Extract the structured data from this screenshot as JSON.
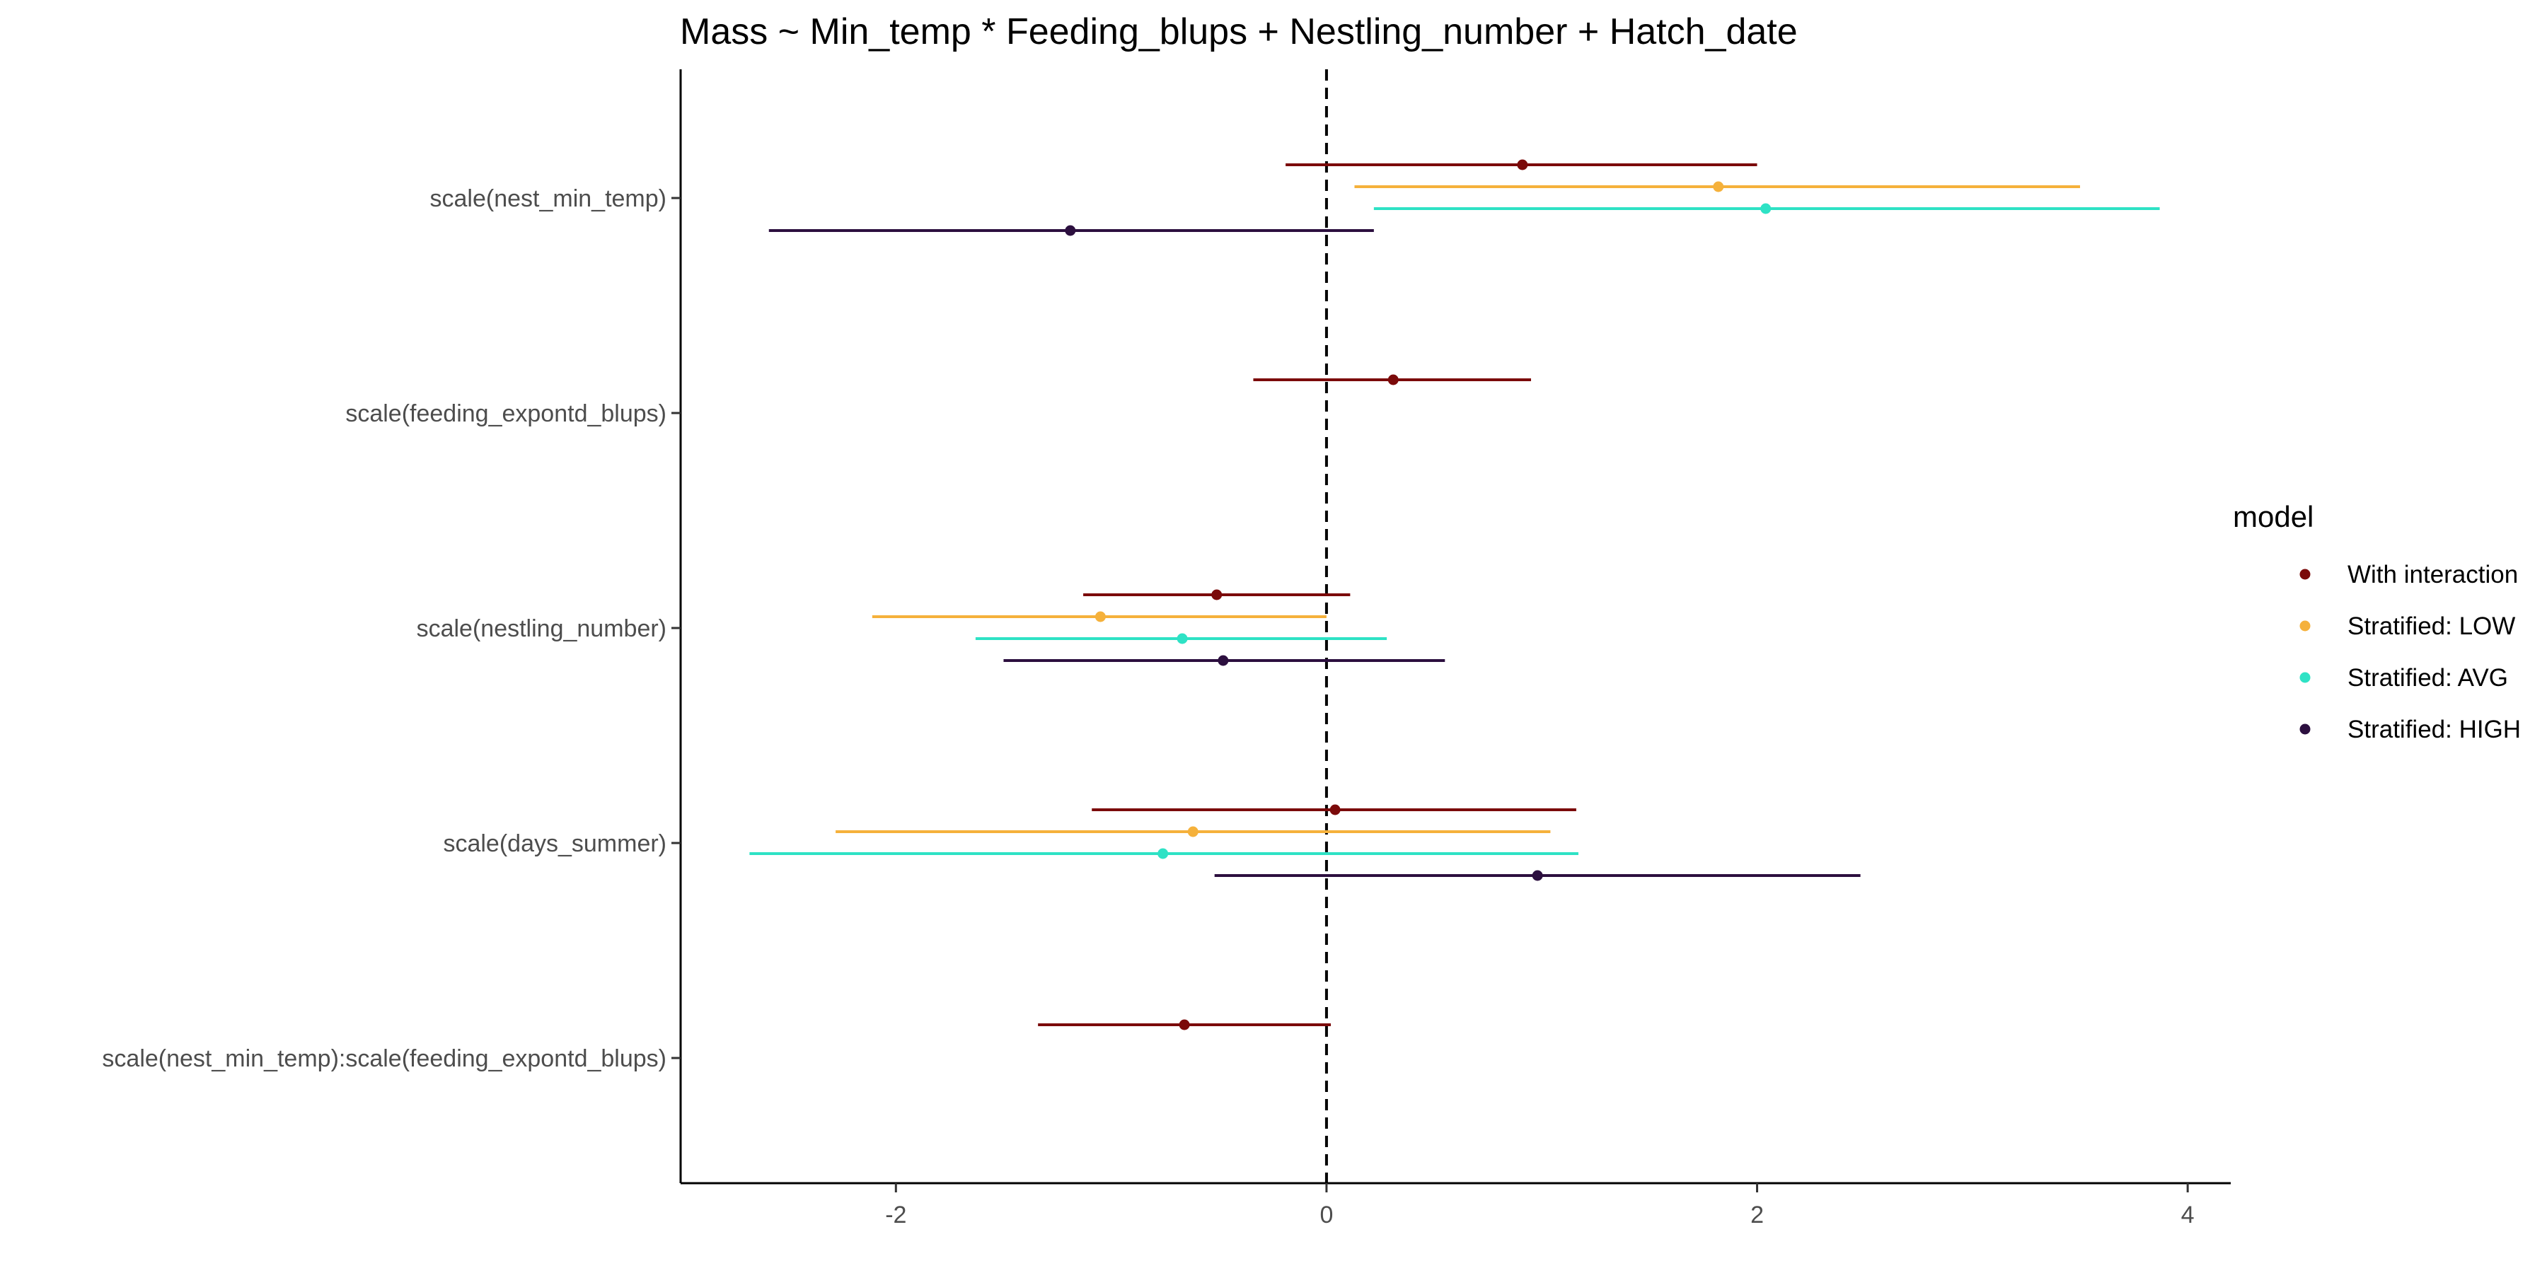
{
  "chart_data": {
    "type": "forest",
    "title": "Mass ~ Min_temp * Feeding_blups + Nestling_number + Hatch_date",
    "xlabel": "",
    "ylabel": "",
    "xlim": [
      -3.0,
      4.2
    ],
    "xticks": [
      -2,
      0,
      2,
      4
    ],
    "xtick_labels": [
      "-2",
      "0",
      "2",
      "4"
    ],
    "reference_line": {
      "x": 0,
      "style": "dashed"
    },
    "grid": false,
    "terms": [
      "scale(nest_min_temp)",
      "scale(feeding_expontd_blups)",
      "scale(nestling_number)",
      "scale(days_summer)",
      "scale(nest_min_temp):scale(feeding_expontd_blups)"
    ],
    "legend": {
      "title": "model",
      "position": "right"
    },
    "series": [
      {
        "name": "With interaction",
        "color": "#7b0a0a",
        "points": [
          {
            "term": "scale(nest_min_temp)",
            "estimate": 0.91,
            "low": -0.19,
            "high": 2.0
          },
          {
            "term": "scale(feeding_expontd_blups)",
            "estimate": 0.31,
            "low": -0.34,
            "high": 0.95
          },
          {
            "term": "scale(nestling_number)",
            "estimate": -0.51,
            "low": -1.13,
            "high": 0.11
          },
          {
            "term": "scale(days_summer)",
            "estimate": 0.04,
            "low": -1.09,
            "high": 1.16
          },
          {
            "term": "scale(nest_min_temp):scale(feeding_expontd_blups)",
            "estimate": -0.66,
            "low": -1.34,
            "high": 0.02
          }
        ]
      },
      {
        "name": "Stratified: LOW",
        "color": "#f5b13b",
        "points": [
          {
            "term": "scale(nest_min_temp)",
            "estimate": 1.82,
            "low": 0.13,
            "high": 3.5
          },
          {
            "term": "scale(nestling_number)",
            "estimate": -1.05,
            "low": -2.11,
            "high": 0.0
          },
          {
            "term": "scale(days_summer)",
            "estimate": -0.62,
            "low": -2.28,
            "high": 1.04
          }
        ]
      },
      {
        "name": "Stratified: AVG",
        "color": "#2ee2c5",
        "points": [
          {
            "term": "scale(nest_min_temp)",
            "estimate": 2.04,
            "low": 0.22,
            "high": 3.87
          },
          {
            "term": "scale(nestling_number)",
            "estimate": -0.67,
            "low": -1.63,
            "high": 0.28
          },
          {
            "term": "scale(days_summer)",
            "estimate": -0.76,
            "low": -2.68,
            "high": 1.17
          }
        ]
      },
      {
        "name": "Stratified: HIGH",
        "color": "#2c0f3f",
        "points": [
          {
            "term": "scale(nest_min_temp)",
            "estimate": -1.19,
            "low": -2.59,
            "high": 0.22
          },
          {
            "term": "scale(nestling_number)",
            "estimate": -0.48,
            "low": -1.5,
            "high": 0.55
          },
          {
            "term": "scale(days_summer)",
            "estimate": 0.98,
            "low": -0.52,
            "high": 2.48
          }
        ]
      }
    ]
  }
}
